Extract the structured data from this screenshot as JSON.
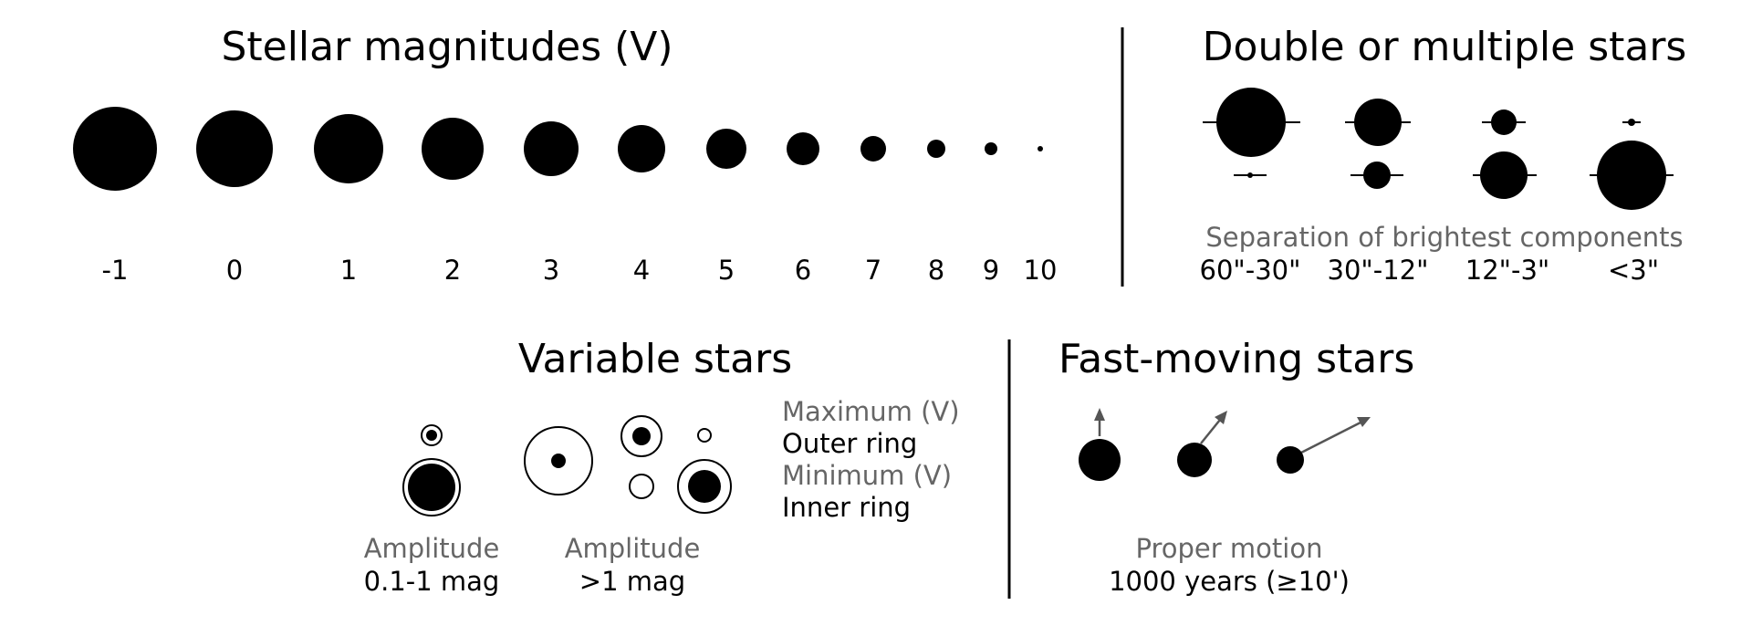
{
  "colors": {
    "ink": "#000000",
    "secondary_text": "#666666",
    "arrow": "#555555",
    "background": "#ffffff"
  },
  "magnitudes": {
    "title": "Stellar magnitudes (V)",
    "labels": [
      "-1",
      "0",
      "1",
      "2",
      "3",
      "4",
      "5",
      "6",
      "7",
      "8",
      "9",
      "10"
    ]
  },
  "doubles": {
    "title": "Double or multiple stars",
    "caption": "Separation of brightest components",
    "separations": [
      "60\"-30\"",
      "30\"-12\"",
      "12\"-3\"",
      "<3\""
    ]
  },
  "variables": {
    "title": "Variable stars",
    "small_amplitude": {
      "label": "Amplitude",
      "value": "0.1-1 mag"
    },
    "large_amplitude": {
      "label": "Amplitude",
      "value": ">1 mag"
    },
    "legend": {
      "maximum": "Maximum (V)",
      "outer": "Outer ring",
      "minimum": "Minimum (V)",
      "inner": "Inner ring"
    }
  },
  "fast_moving": {
    "title": "Fast-moving stars",
    "caption": "Proper motion",
    "period": "1000 years (≥10')"
  }
}
